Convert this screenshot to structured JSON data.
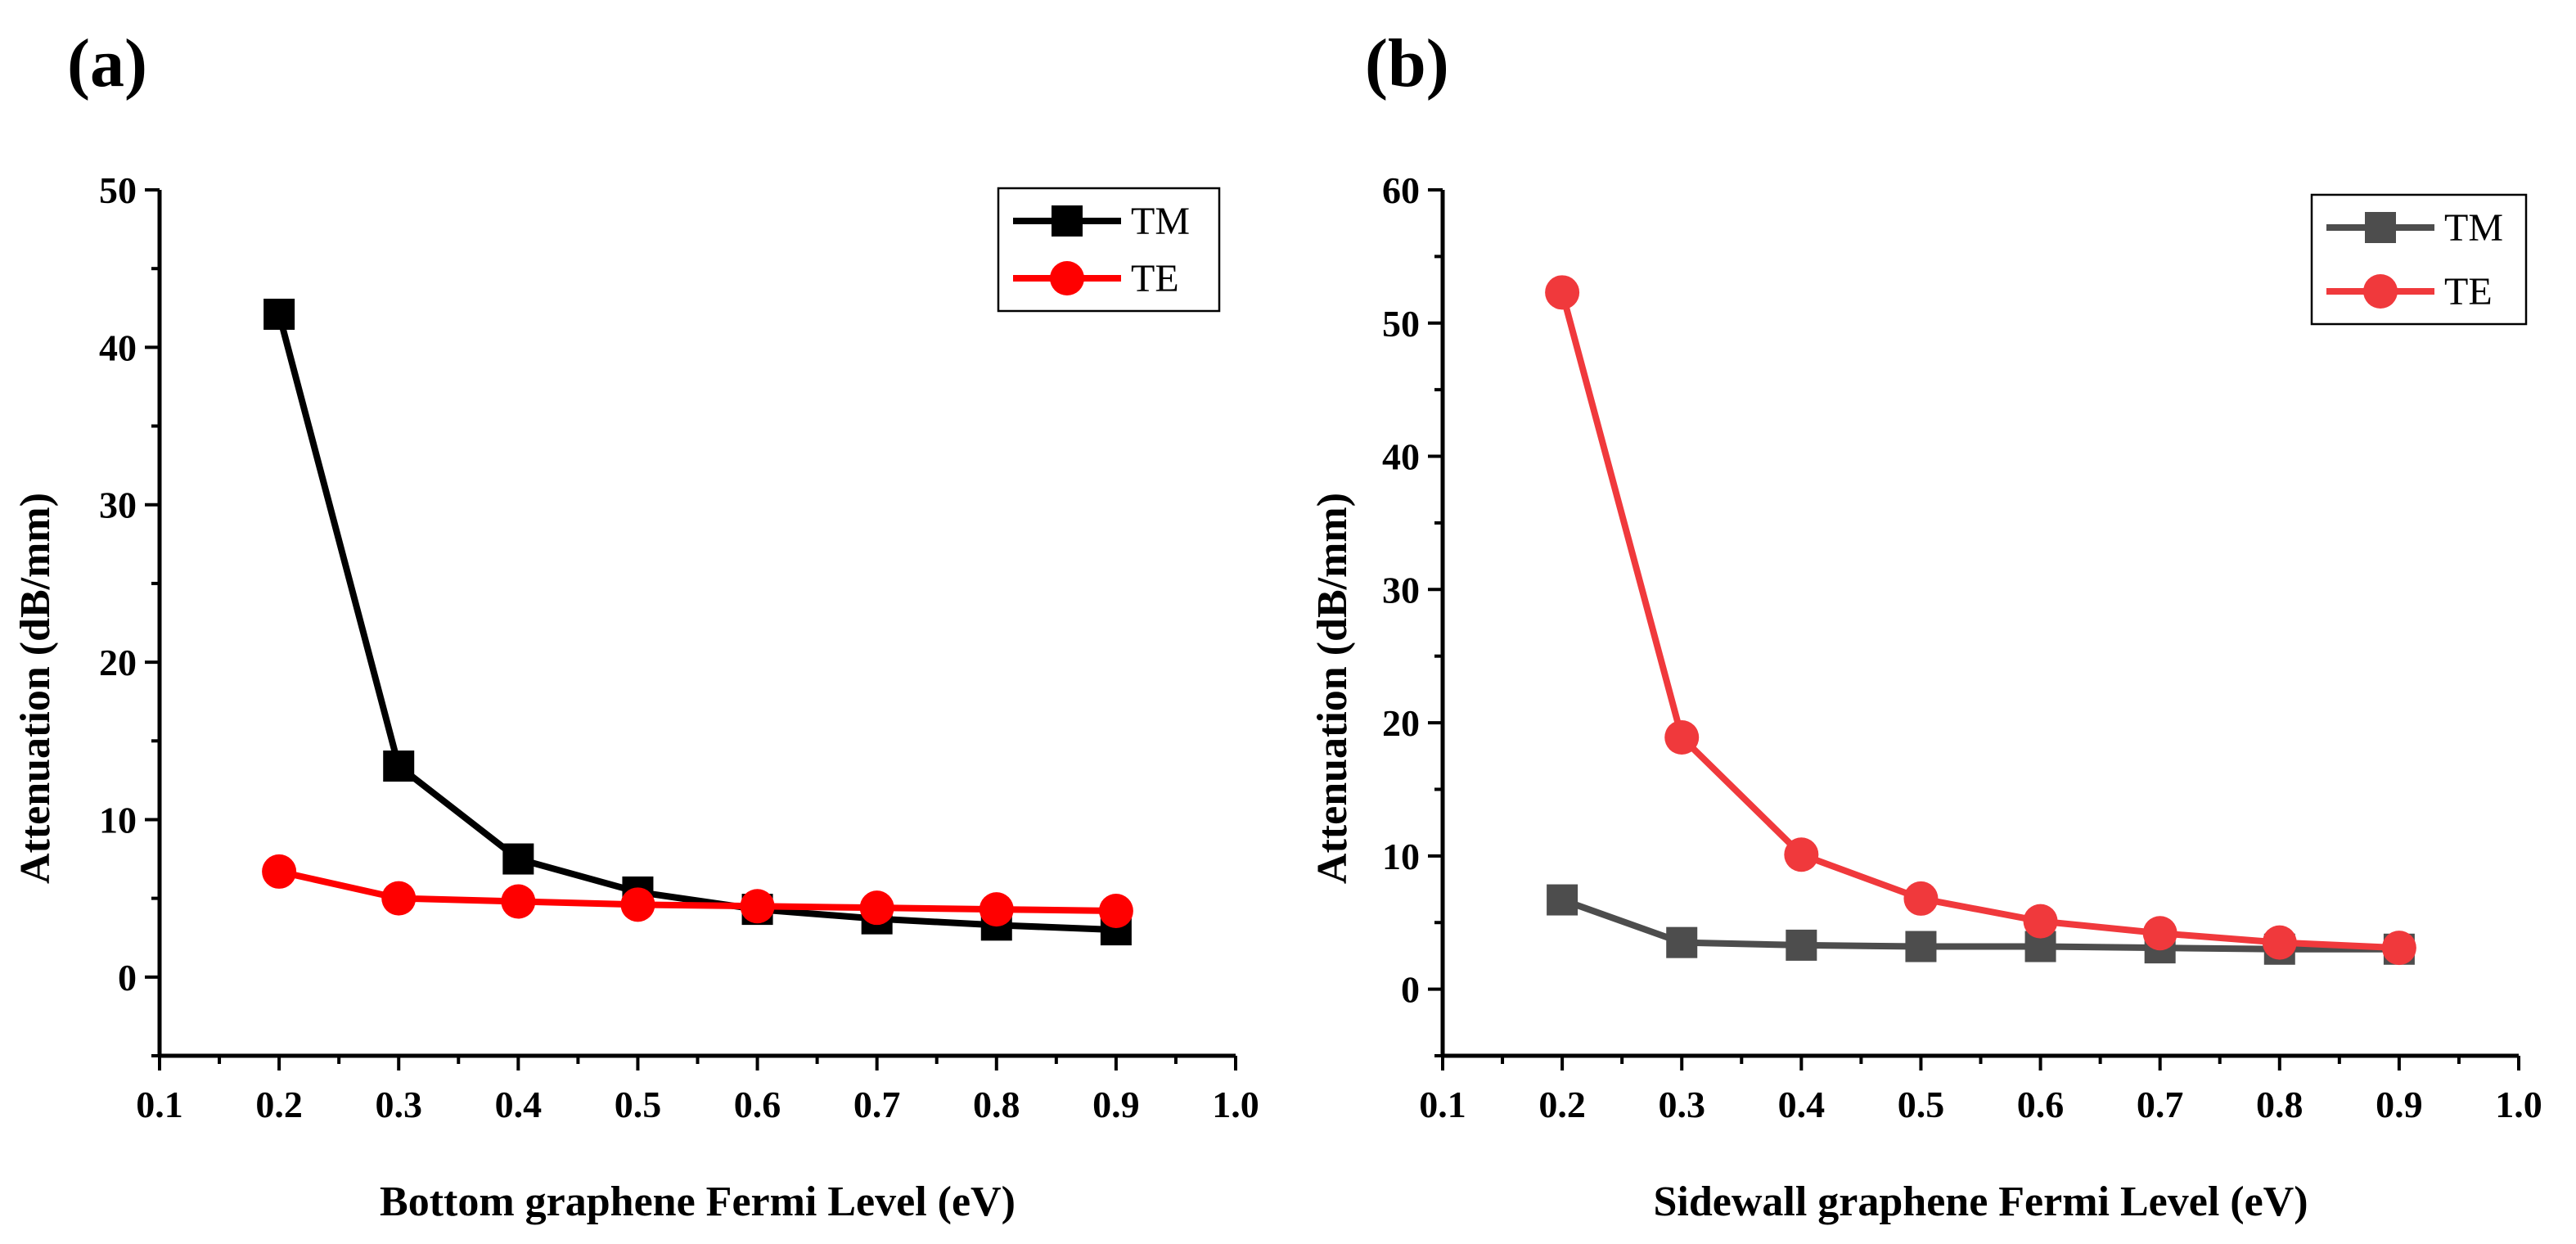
{
  "chart_data": [
    {
      "type": "line",
      "panel_label": "(a)",
      "xlabel": "Bottom graphene Fermi Level (eV)",
      "ylabel": "Attenuation (dB/mm)",
      "xlim": [
        0.1,
        1.0
      ],
      "ylim": [
        -5,
        50
      ],
      "xticks": [
        "0.1",
        "0.2",
        "0.3",
        "0.4",
        "0.5",
        "0.6",
        "0.7",
        "0.8",
        "0.9",
        "1.0"
      ],
      "yticks": [
        "0",
        "10",
        "20",
        "30",
        "40",
        "50"
      ],
      "x": [
        0.2,
        0.3,
        0.4,
        0.5,
        0.6,
        0.7,
        0.8,
        0.9
      ],
      "legend_position": "top-right",
      "series": [
        {
          "name": "TM",
          "marker": "square",
          "color": "#000000",
          "values": [
            42.1,
            13.4,
            7.5,
            5.4,
            4.3,
            3.7,
            3.3,
            3.0
          ]
        },
        {
          "name": "TE",
          "marker": "circle",
          "color": "#ff0000",
          "values": [
            6.7,
            5.0,
            4.8,
            4.6,
            4.5,
            4.4,
            4.3,
            4.2
          ]
        }
      ]
    },
    {
      "type": "line",
      "panel_label": "(b)",
      "xlabel": "Sidewall graphene Fermi Level (eV)",
      "ylabel": "Attenuation (dB/mm)",
      "xlim": [
        0.1,
        1.0
      ],
      "ylim": [
        -5,
        60
      ],
      "xticks": [
        "0.1",
        "0.2",
        "0.3",
        "0.4",
        "0.5",
        "0.6",
        "0.7",
        "0.8",
        "0.9",
        "1.0"
      ],
      "yticks": [
        "0",
        "10",
        "20",
        "30",
        "40",
        "50",
        "60"
      ],
      "x": [
        0.2,
        0.3,
        0.4,
        0.5,
        0.6,
        0.7,
        0.8,
        0.9
      ],
      "legend_position": "top-right",
      "series": [
        {
          "name": "TM",
          "marker": "square",
          "color": "#4d4d4d",
          "values": [
            6.7,
            3.5,
            3.3,
            3.2,
            3.2,
            3.1,
            3.0,
            3.0
          ]
        },
        {
          "name": "TE",
          "marker": "circle",
          "color": "#f0393c",
          "values": [
            52.3,
            18.9,
            10.1,
            6.8,
            5.1,
            4.2,
            3.5,
            3.1
          ]
        }
      ]
    }
  ]
}
